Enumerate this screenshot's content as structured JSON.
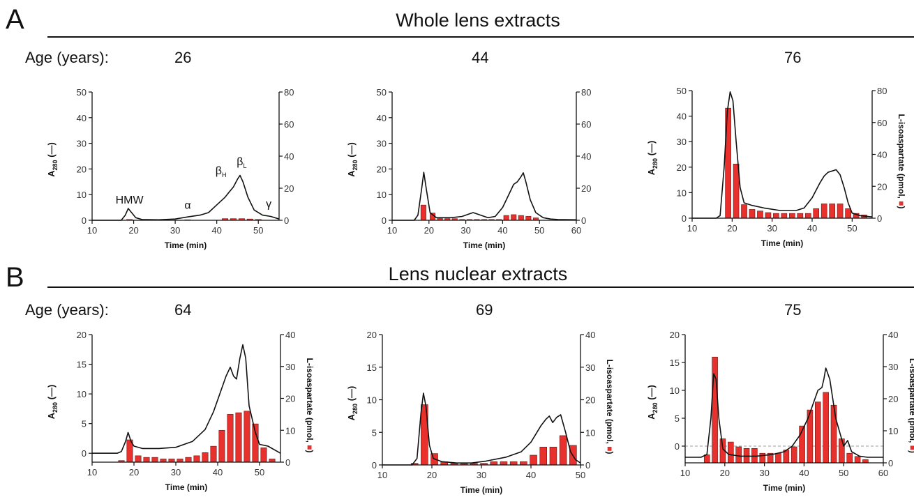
{
  "panel_a": {
    "letter": "A",
    "title": "Whole lens extracts",
    "age_label": "Age (years):",
    "ages": [
      "26",
      "44",
      "76"
    ]
  },
  "panel_b": {
    "letter": "B",
    "title": "Lens nuclear extracts",
    "age_label": "Age (years):",
    "ages": [
      "64",
      "69",
      "75"
    ]
  },
  "colors": {
    "bar": "#e8302c",
    "line": "#111111"
  },
  "chart_data": [
    {
      "id": "A26",
      "type": "bar",
      "panel": "A",
      "age": "26",
      "xlabel": "Time (min)",
      "ylabel_left": "A280 (—)",
      "ylabel_right": "L-isoaspartate (pmol, ■)",
      "xlim": [
        10,
        55
      ],
      "xticks": [
        10,
        20,
        30,
        40,
        50
      ],
      "ylim_left": [
        0,
        50
      ],
      "yticks_left": [
        0,
        10,
        20,
        30,
        40,
        50
      ],
      "ylim_right": [
        0,
        80
      ],
      "yticks_right": [
        0,
        20,
        40,
        60,
        80
      ],
      "bars": {
        "x": [
          19,
          33,
          42,
          44,
          46,
          48,
          50
        ],
        "values": [
          0.5,
          0.3,
          1,
          1,
          1,
          0.8,
          0.5
        ]
      },
      "line": {
        "x": [
          10,
          17,
          18,
          18.7,
          19.5,
          20.5,
          22,
          26,
          30,
          33,
          36,
          38,
          40,
          42,
          43,
          44,
          45,
          45.6,
          46.3,
          47.5,
          49,
          51,
          53,
          55
        ],
        "y": [
          0,
          0,
          2,
          4.6,
          3,
          1,
          0.3,
          0.2,
          0.5,
          1.3,
          2,
          3,
          6,
          9,
          11,
          13,
          16,
          17.5,
          15,
          9,
          4,
          2,
          1.5,
          0.5
        ]
      },
      "annotations": [
        "HMW",
        "α",
        "βH",
        "βL",
        "γ"
      ]
    },
    {
      "id": "A44",
      "type": "bar",
      "panel": "A",
      "age": "44",
      "xlabel": "Time (min)",
      "ylabel_left": "A280 (—)",
      "ylabel_right": "L-isoaspartate (pmol, ■)",
      "xlim": [
        10,
        60
      ],
      "xticks": [
        10,
        20,
        30,
        40,
        50,
        60
      ],
      "ylim_left": [
        0,
        50
      ],
      "yticks_left": [
        0,
        10,
        20,
        30,
        40,
        50
      ],
      "ylim_right": [
        0,
        80
      ],
      "yticks_right": [
        0,
        20,
        40,
        60,
        80
      ],
      "bars": {
        "x": [
          18.5,
          21,
          23,
          25,
          27,
          29,
          31,
          33,
          35,
          37,
          39,
          41,
          43,
          45,
          47,
          49
        ],
        "values": [
          9.5,
          4.5,
          1.5,
          1,
          1,
          0.5,
          0.5,
          0.5,
          0.5,
          0.5,
          0.5,
          3,
          3.5,
          3,
          2.5,
          1.5
        ]
      },
      "line": {
        "x": [
          10,
          16,
          17,
          18,
          18.6,
          19.3,
          20.3,
          22,
          26,
          29,
          31,
          32,
          34,
          36,
          38,
          40,
          41,
          42,
          43,
          44,
          45,
          45.6,
          46.3,
          47.5,
          49,
          51,
          53,
          55,
          60
        ],
        "y": [
          0,
          0,
          2,
          12,
          18.7,
          12,
          3,
          1,
          1,
          1.5,
          2.5,
          3,
          2,
          1,
          1.5,
          5,
          8,
          11,
          14,
          15,
          17,
          18.5,
          15,
          8,
          3,
          1,
          0.5,
          0.3,
          0.2
        ]
      }
    },
    {
      "id": "A76",
      "type": "bar",
      "panel": "A",
      "age": "76",
      "xlabel": "Time (min)",
      "ylabel_left": "A280 (—)",
      "ylabel_right": "L-isoaspartate (pmol, ■)",
      "xlim": [
        10,
        55
      ],
      "xticks": [
        10,
        20,
        30,
        40,
        50
      ],
      "ylim_left": [
        0,
        50
      ],
      "yticks_left": [
        0,
        10,
        20,
        30,
        40,
        50
      ],
      "ylim_right": [
        0,
        80
      ],
      "yticks_right": [
        0,
        20,
        40,
        60,
        80
      ],
      "bars": {
        "x": [
          19,
          21,
          23,
          25,
          27,
          29,
          31,
          33,
          35,
          37,
          39,
          41,
          43,
          45,
          47,
          49,
          51,
          53
        ],
        "values": [
          69,
          34,
          8.5,
          5.5,
          4.5,
          3.5,
          3,
          3,
          3,
          3,
          3,
          6,
          9,
          9,
          9,
          6,
          3,
          2
        ]
      },
      "line": {
        "x": [
          10,
          16,
          17,
          18,
          18.8,
          19.5,
          20.2,
          21,
          22,
          23,
          25,
          28,
          32,
          36,
          38,
          40,
          42,
          43,
          44,
          45,
          46,
          47,
          48,
          49,
          50,
          52,
          55
        ],
        "y": [
          0,
          0,
          1,
          20,
          42,
          49.5,
          46,
          30,
          12,
          6,
          5,
          4,
          3,
          3,
          4,
          8,
          14,
          16.5,
          18,
          18.5,
          19,
          17,
          12,
          6,
          2,
          1,
          0.5
        ]
      }
    },
    {
      "id": "B64",
      "type": "bar",
      "panel": "B",
      "age": "64",
      "xlabel": "Time (min)",
      "ylabel_left": "A280 (—)",
      "ylabel_right": "L-isoaspartate (pmol, ■)",
      "xlim": [
        10,
        55
      ],
      "xticks": [
        10,
        20,
        30,
        40,
        50
      ],
      "ylim_left": [
        -1.5,
        20
      ],
      "yticks_left": [
        0,
        5,
        10,
        15,
        20
      ],
      "ylim_right": [
        0,
        40
      ],
      "yticks_right": [
        0,
        10,
        20,
        30,
        40
      ],
      "bars": {
        "x": [
          17,
          19,
          21,
          23,
          25,
          27,
          29,
          31,
          33,
          35,
          37,
          39,
          41,
          43,
          45,
          47,
          49,
          51,
          53
        ],
        "values": [
          0.5,
          7,
          2,
          1.5,
          1.5,
          1,
          1,
          1,
          1.5,
          2,
          3,
          5,
          10,
          15,
          15.5,
          16,
          12,
          4.5,
          1
        ]
      },
      "line": {
        "x": [
          10,
          16,
          17,
          18,
          18.6,
          19.3,
          20,
          22,
          26,
          30,
          34,
          37,
          39,
          41,
          42,
          43,
          43.8,
          44.5,
          45.3,
          46,
          46.7,
          47.5,
          49,
          50,
          52,
          55
        ],
        "y": [
          0,
          0,
          0.3,
          2,
          3.5,
          2,
          1.2,
          0.8,
          0.8,
          1,
          2,
          4,
          7,
          11,
          13,
          14.5,
          13,
          12.5,
          16,
          18.3,
          16,
          8,
          3.5,
          1.5,
          1.2,
          0
        ]
      }
    },
    {
      "id": "B69",
      "type": "bar",
      "panel": "B",
      "age": "69",
      "xlabel": "Time (min)",
      "ylabel_left": "A280 (—)",
      "ylabel_right": "L-isoaspartate (pmol, ■)",
      "xlim": [
        10,
        50
      ],
      "xticks": [
        10,
        20,
        30,
        40,
        50
      ],
      "ylim_left": [
        0,
        20
      ],
      "yticks_left": [
        0,
        5,
        10,
        15,
        20
      ],
      "ylim_right": [
        0,
        40
      ],
      "yticks_right": [
        0,
        10,
        20,
        30,
        40
      ],
      "bars": {
        "x": [
          16.5,
          18.5,
          20.5,
          22.5,
          24.5,
          26.5,
          28.5,
          30.5,
          32.5,
          34.5,
          36.5,
          38.5,
          40.5,
          42.5,
          44.5,
          46.5,
          48.5
        ],
        "values": [
          0.5,
          18.5,
          3.5,
          1,
          0.5,
          0.5,
          0.5,
          0.5,
          1,
          1,
          1,
          1,
          3,
          5.5,
          5.5,
          9,
          6
        ]
      },
      "line": {
        "x": [
          10,
          16,
          17,
          17.8,
          18.3,
          18.8,
          19.5,
          20.3,
          22,
          25,
          28,
          31,
          35,
          38,
          40,
          42,
          43,
          43.7,
          44.4,
          45.2,
          46,
          47,
          48,
          49,
          50
        ],
        "y": [
          0,
          0,
          1,
          8,
          11,
          9,
          3,
          1,
          0.5,
          0.3,
          0.3,
          0.6,
          1.2,
          2,
          3.5,
          6,
          7,
          7.5,
          6.5,
          7.3,
          7.7,
          5,
          2,
          0.8,
          0.3
        ]
      }
    },
    {
      "id": "B75",
      "type": "bar",
      "panel": "B",
      "age": "75",
      "xlabel": "Time (min)",
      "ylabel_left": "A280 (—)",
      "ylabel_right": "L-isoaspartate (pmol, ■)",
      "xlim": [
        10,
        60
      ],
      "xticks": [
        10,
        20,
        30,
        40,
        50,
        60
      ],
      "ylim_left": [
        -3,
        20
      ],
      "yticks_left": [
        0,
        5,
        10,
        15,
        20
      ],
      "ylim_right": [
        0,
        40
      ],
      "yticks_right": [
        0,
        10,
        20,
        30,
        40
      ],
      "reference_line_left": 0,
      "bars": {
        "x": [
          15.5,
          17.5,
          19.5,
          21.5,
          23.5,
          25.5,
          27.5,
          29.5,
          31.5,
          33.5,
          35.5,
          37.5,
          39.5,
          41.5,
          43.5,
          45.5,
          47.5,
          49.5,
          51.5,
          53.5,
          55.5
        ],
        "values": [
          2.5,
          33,
          7.5,
          6.5,
          5,
          4.5,
          4.5,
          3,
          3,
          3,
          4,
          5,
          11.5,
          16.5,
          19,
          22,
          18,
          7.5,
          3,
          2,
          1
        ]
      },
      "line": {
        "x": [
          10,
          14,
          15.5,
          16.5,
          17.2,
          17.8,
          18.5,
          19.5,
          21,
          24,
          28,
          32,
          35,
          37,
          39,
          41,
          42.5,
          43.5,
          44.5,
          45,
          45.5,
          46.5,
          48,
          50,
          51,
          52,
          54,
          56,
          60
        ],
        "y": [
          -2,
          -2,
          -1.5,
          5,
          13,
          12,
          5,
          -0.5,
          -1.5,
          -1.8,
          -1.8,
          -1.5,
          -1,
          0,
          2,
          5,
          8,
          10,
          10.5,
          12,
          14,
          12,
          5,
          0,
          1,
          -1,
          -1.8,
          -2,
          -2
        ]
      }
    }
  ]
}
